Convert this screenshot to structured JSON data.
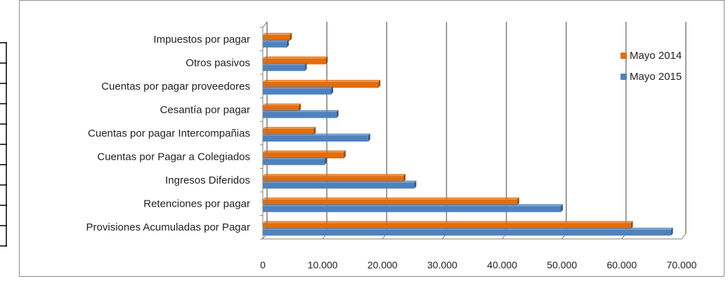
{
  "chart_data": {
    "type": "bar",
    "orientation": "horizontal",
    "title": "",
    "xlabel": "",
    "ylabel": "",
    "categories": [
      "Provisiones Acumuladas por Pagar",
      "Retenciones por pagar",
      "Ingresos Diferidos",
      "Cuentas por Pagar a Colegiados",
      "Cuentas por pagar Intercompañias",
      "Cesantía por pagar",
      "Cuentas por pagar proveedores",
      "Otros pasivos",
      "Impuestos por pagar"
    ],
    "series": [
      {
        "name": "Mayo 2014",
        "color": "#e46c0a",
        "values": [
          61500,
          42500,
          23500,
          13500,
          8500,
          6000,
          19300,
          10500,
          4500
        ]
      },
      {
        "name": "Mayo 2015",
        "color": "#4f81bd",
        "values": [
          68200,
          49800,
          25300,
          10300,
          17600,
          12300,
          11400,
          7000,
          4000
        ]
      }
    ],
    "xlim": [
      0,
      70000
    ],
    "xticks": [
      "0",
      "10.000",
      "20.000",
      "30.000",
      "40.000",
      "50.000",
      "60.000",
      "70.000"
    ],
    "grid": true,
    "legend_position": "right"
  }
}
